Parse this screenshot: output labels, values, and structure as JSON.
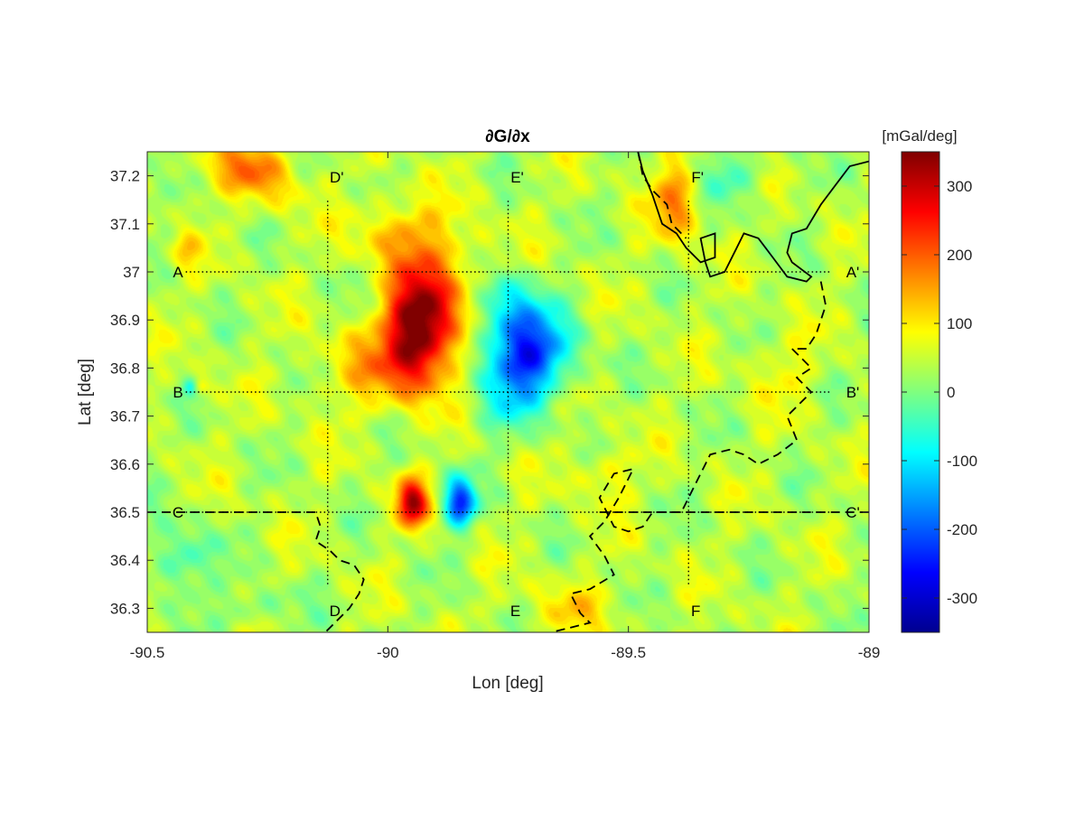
{
  "chart_data": {
    "type": "heatmap",
    "title": "∂G/∂x",
    "xlabel": "Lon [deg]",
    "ylabel": "Lat [deg]",
    "xlim": [
      -90.5,
      -89.0
    ],
    "ylim": [
      36.25,
      37.25
    ],
    "x_ticks": [
      -90.5,
      -90.0,
      -89.5,
      -89.0
    ],
    "x_tick_labels": [
      "-90.5",
      "-90",
      "-89.5",
      "-89"
    ],
    "y_ticks": [
      36.3,
      36.4,
      36.5,
      36.6,
      36.7,
      36.8,
      36.9,
      37.0,
      37.1,
      37.2
    ],
    "y_tick_labels": [
      "36.3",
      "36.4",
      "36.5",
      "36.6",
      "36.7",
      "36.8",
      "36.9",
      "37",
      "37.1",
      "37.2"
    ],
    "colorbar": {
      "label": "[mGal/deg]",
      "colormap": "jet",
      "clim": [
        -350,
        350
      ],
      "ticks": [
        -300,
        -200,
        -100,
        0,
        100,
        200,
        300
      ],
      "tick_labels": [
        "-300",
        "-200",
        "-100",
        "0",
        "100",
        "200",
        "300"
      ]
    },
    "background_value": 40,
    "anomalies": [
      {
        "lon": -89.94,
        "lat": 36.88,
        "amplitude": 290,
        "sigma_lon": 0.045,
        "sigma_lat": 0.08
      },
      {
        "lon": -89.88,
        "lat": 36.95,
        "amplitude": 120,
        "sigma_lon": 0.06,
        "sigma_lat": 0.09
      },
      {
        "lon": -90.02,
        "lat": 36.8,
        "amplitude": 90,
        "sigma_lon": 0.08,
        "sigma_lat": 0.06
      },
      {
        "lon": -89.98,
        "lat": 37.08,
        "amplitude": 90,
        "sigma_lon": 0.06,
        "sigma_lat": 0.05
      },
      {
        "lon": -89.71,
        "lat": 36.83,
        "amplitude": -290,
        "sigma_lon": 0.06,
        "sigma_lat": 0.06
      },
      {
        "lon": -89.76,
        "lat": 36.93,
        "amplitude": -120,
        "sigma_lon": 0.05,
        "sigma_lat": 0.05
      },
      {
        "lon": -89.75,
        "lat": 36.72,
        "amplitude": -70,
        "sigma_lon": 0.05,
        "sigma_lat": 0.05
      },
      {
        "lon": -89.95,
        "lat": 36.52,
        "amplitude": 270,
        "sigma_lon": 0.022,
        "sigma_lat": 0.035
      },
      {
        "lon": -89.85,
        "lat": 36.52,
        "amplitude": -270,
        "sigma_lon": 0.022,
        "sigma_lat": 0.035
      },
      {
        "lon": -90.3,
        "lat": 37.22,
        "amplitude": 110,
        "sigma_lon": 0.06,
        "sigma_lat": 0.04
      },
      {
        "lon": -90.24,
        "lat": 37.18,
        "amplitude": 60,
        "sigma_lon": 0.04,
        "sigma_lat": 0.04
      },
      {
        "lon": -89.4,
        "lat": 37.15,
        "amplitude": 130,
        "sigma_lon": 0.035,
        "sigma_lat": 0.06
      },
      {
        "lon": -90.43,
        "lat": 36.4,
        "amplitude": -100,
        "sigma_lon": 0.04,
        "sigma_lat": 0.05
      },
      {
        "lon": -90.39,
        "lat": 36.76,
        "amplitude": 70,
        "sigma_lon": 0.012,
        "sigma_lat": 0.012
      },
      {
        "lon": -90.41,
        "lat": 36.76,
        "amplitude": -80,
        "sigma_lon": 0.01,
        "sigma_lat": 0.012
      },
      {
        "lon": -90.42,
        "lat": 37.04,
        "amplitude": 60,
        "sigma_lon": 0.02,
        "sigma_lat": 0.03
      },
      {
        "lon": -89.29,
        "lat": 37.2,
        "amplitude": -70,
        "sigma_lon": 0.05,
        "sigma_lat": 0.04
      },
      {
        "lon": -89.55,
        "lat": 36.58,
        "amplitude": 60,
        "sigma_lon": 0.04,
        "sigma_lat": 0.04
      },
      {
        "lon": -89.62,
        "lat": 36.3,
        "amplitude": 60,
        "sigma_lon": 0.06,
        "sigma_lat": 0.04
      },
      {
        "lon": -90.28,
        "lat": 36.3,
        "amplitude": -50,
        "sigma_lon": 0.06,
        "sigma_lat": 0.03
      },
      {
        "lon": -89.18,
        "lat": 36.8,
        "amplitude": 40,
        "sigma_lon": 0.05,
        "sigma_lat": 0.05
      }
    ],
    "profiles": [
      {
        "start_label": "A",
        "end_label": "A'",
        "orientation": "horizontal",
        "lat": 37.0,
        "lon_range": [
          -90.42,
          -89.08
        ]
      },
      {
        "start_label": "B",
        "end_label": "B'",
        "orientation": "horizontal",
        "lat": 36.75,
        "lon_range": [
          -90.42,
          -89.08
        ]
      },
      {
        "start_label": "C",
        "end_label": "C'",
        "orientation": "horizontal",
        "lat": 36.5,
        "lon_range": [
          -90.42,
          -89.08
        ]
      },
      {
        "start_label": "D",
        "end_label": "D'",
        "orientation": "vertical",
        "lon": -90.125,
        "lat_range": [
          36.35,
          37.15
        ]
      },
      {
        "start_label": "E",
        "end_label": "E'",
        "orientation": "vertical",
        "lon": -89.75,
        "lat_range": [
          36.35,
          37.15
        ]
      },
      {
        "start_label": "F",
        "end_label": "F'",
        "orientation": "vertical",
        "lon": -89.375,
        "lat_range": [
          36.35,
          37.15
        ]
      }
    ],
    "boundaries": [
      {
        "style": "solid",
        "points": [
          [
            -89.0,
            37.23
          ],
          [
            -89.04,
            37.22
          ],
          [
            -89.07,
            37.18
          ],
          [
            -89.1,
            37.14
          ],
          [
            -89.13,
            37.09
          ],
          [
            -89.16,
            37.08
          ],
          [
            -89.17,
            37.04
          ],
          [
            -89.16,
            37.02
          ],
          [
            -89.12,
            36.99
          ],
          [
            -89.13,
            36.98
          ],
          [
            -89.17,
            36.99
          ],
          [
            -89.2,
            37.03
          ],
          [
            -89.23,
            37.07
          ],
          [
            -89.26,
            37.08
          ],
          [
            -89.28,
            37.04
          ],
          [
            -89.3,
            37.0
          ],
          [
            -89.33,
            36.99
          ],
          [
            -89.34,
            37.02
          ],
          [
            -89.35,
            37.07
          ],
          [
            -89.32,
            37.08
          ],
          [
            -89.32,
            37.03
          ],
          [
            -89.35,
            37.02
          ],
          [
            -89.38,
            37.05
          ],
          [
            -89.4,
            37.08
          ],
          [
            -89.43,
            37.1
          ],
          [
            -89.45,
            37.16
          ],
          [
            -89.47,
            37.21
          ],
          [
            -89.48,
            37.25
          ]
        ]
      },
      {
        "style": "dashed",
        "points": [
          [
            -89.1,
            36.98
          ],
          [
            -89.09,
            36.93
          ],
          [
            -89.11,
            36.87
          ],
          [
            -89.13,
            36.84
          ],
          [
            -89.16,
            36.84
          ],
          [
            -89.12,
            36.8
          ],
          [
            -89.15,
            36.78
          ],
          [
            -89.12,
            36.75
          ],
          [
            -89.15,
            36.72
          ],
          [
            -89.17,
            36.7
          ],
          [
            -89.15,
            36.65
          ],
          [
            -89.19,
            36.62
          ],
          [
            -89.23,
            36.6
          ],
          [
            -89.26,
            36.62
          ],
          [
            -89.29,
            36.63
          ],
          [
            -89.33,
            36.62
          ],
          [
            -89.36,
            36.56
          ],
          [
            -89.39,
            36.5
          ],
          [
            -89.45,
            36.5
          ],
          [
            -89.47,
            36.47
          ],
          [
            -89.5,
            36.46
          ],
          [
            -89.53,
            36.47
          ],
          [
            -89.56,
            36.53
          ],
          [
            -89.53,
            36.58
          ],
          [
            -89.49,
            36.59
          ],
          [
            -89.52,
            36.53
          ],
          [
            -89.55,
            36.48
          ],
          [
            -89.58,
            36.45
          ],
          [
            -89.55,
            36.41
          ],
          [
            -89.53,
            36.37
          ],
          [
            -89.58,
            36.34
          ],
          [
            -89.62,
            36.33
          ],
          [
            -89.6,
            36.29
          ],
          [
            -89.58,
            36.27
          ],
          [
            -89.62,
            36.26
          ],
          [
            -89.66,
            36.25
          ]
        ]
      },
      {
        "style": "dashed",
        "points": [
          [
            -90.5,
            36.5
          ],
          [
            -90.15,
            36.5
          ],
          [
            -90.14,
            36.47
          ],
          [
            -90.15,
            36.44
          ],
          [
            -90.12,
            36.42
          ],
          [
            -90.1,
            36.4
          ],
          [
            -90.07,
            36.39
          ],
          [
            -90.05,
            36.36
          ],
          [
            -90.06,
            36.33
          ],
          [
            -90.08,
            36.3
          ],
          [
            -90.1,
            36.28
          ],
          [
            -90.13,
            36.25
          ]
        ]
      },
      {
        "style": "dashed",
        "points": [
          [
            -89.56,
            36.5
          ],
          [
            -89.3,
            36.5
          ],
          [
            -89.15,
            36.5
          ],
          [
            -89.0,
            36.5
          ]
        ]
      },
      {
        "style": "dashed",
        "points": [
          [
            -89.48,
            37.25
          ],
          [
            -89.47,
            37.2
          ],
          [
            -89.45,
            37.17
          ],
          [
            -89.42,
            37.14
          ],
          [
            -89.41,
            37.1
          ],
          [
            -89.38,
            37.07
          ]
        ]
      }
    ]
  }
}
